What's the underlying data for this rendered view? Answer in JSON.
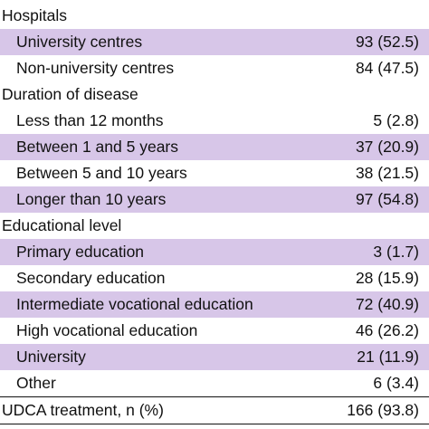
{
  "rows": [
    {
      "kind": "section",
      "label": "Hospitals",
      "value": ""
    },
    {
      "kind": "item",
      "shaded": true,
      "label": "University centres",
      "value": "93 (52.5)"
    },
    {
      "kind": "item",
      "shaded": false,
      "label": "Non-university centres",
      "value": "84 (47.5)"
    },
    {
      "kind": "section",
      "label": "Duration of disease",
      "value": ""
    },
    {
      "kind": "item",
      "shaded": false,
      "label": "Less than 12 months",
      "value": "5 (2.8)"
    },
    {
      "kind": "item",
      "shaded": true,
      "label": "Between 1 and 5 years",
      "value": "37 (20.9)"
    },
    {
      "kind": "item",
      "shaded": false,
      "label": "Between 5 and 10 years",
      "value": "38 (21.5)"
    },
    {
      "kind": "item",
      "shaded": true,
      "label": "Longer than 10 years",
      "value": "97 (54.8)"
    },
    {
      "kind": "section",
      "label": "Educational level",
      "value": ""
    },
    {
      "kind": "item",
      "shaded": true,
      "label": "Primary education",
      "value": "3 (1.7)"
    },
    {
      "kind": "item",
      "shaded": false,
      "label": "Secondary education",
      "value": "28 (15.9)"
    },
    {
      "kind": "item",
      "shaded": true,
      "label": "Intermediate vocational education",
      "value": "72 (40.9)"
    },
    {
      "kind": "item",
      "shaded": false,
      "label": "High vocational education",
      "value": "46 (26.2)"
    },
    {
      "kind": "item",
      "shaded": true,
      "label": "University",
      "value": "21 (11.9)"
    },
    {
      "kind": "item",
      "shaded": false,
      "label": "Other",
      "value": "6 (3.4)"
    },
    {
      "kind": "section",
      "label": "UDCA treatment, n (%)",
      "value": "166 (93.8)"
    }
  ],
  "colors": {
    "shaded_row": "#d7c6e8",
    "text": "#111111",
    "rule": "#111111"
  }
}
